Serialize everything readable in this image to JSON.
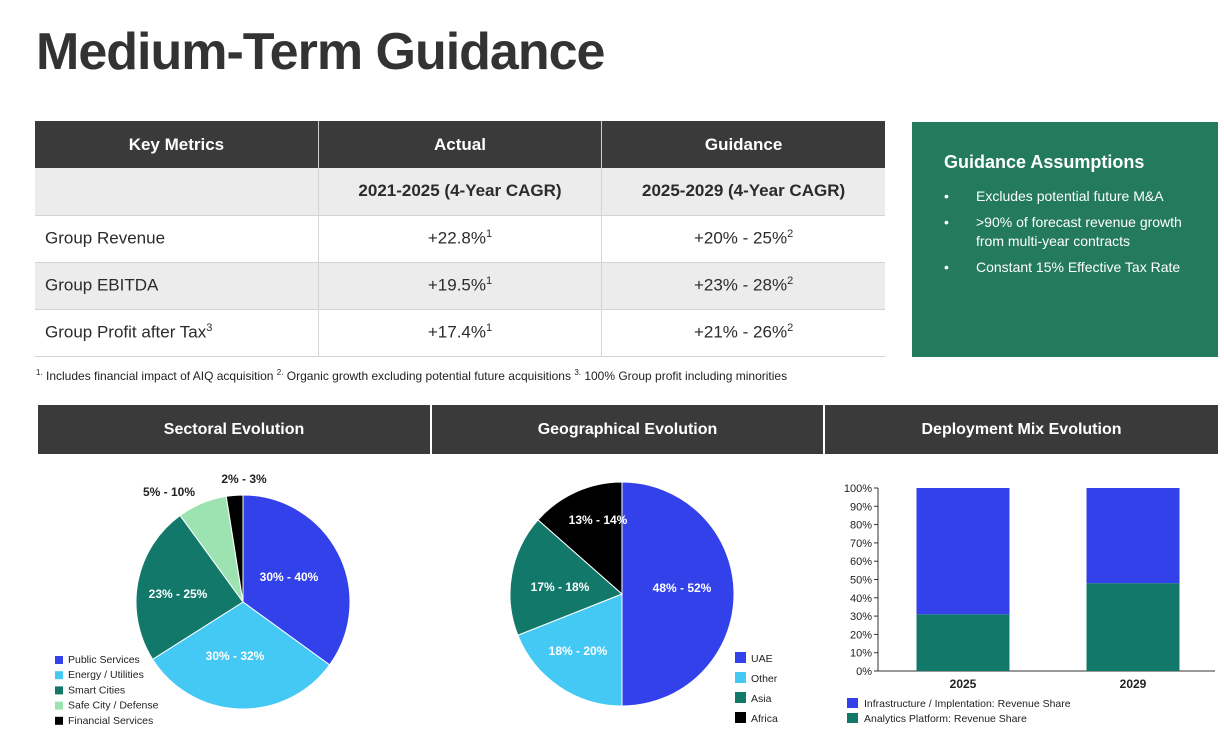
{
  "page": {
    "title": "Medium-Term Guidance"
  },
  "table": {
    "headers": [
      "Key Metrics",
      "Actual",
      "Guidance"
    ],
    "subheaders": [
      "",
      "2021-2025 (4-Year CAGR)",
      "2025-2029 (4-Year CAGR)"
    ],
    "rows": [
      {
        "metric": "Group Revenue",
        "metric_sup": "",
        "actual": "+22.8%",
        "actual_sup": "1",
        "guidance": "+20% - 25%",
        "guidance_sup": "2"
      },
      {
        "metric": "Group EBITDA",
        "metric_sup": "",
        "actual": "+19.5%",
        "actual_sup": "1",
        "guidance": "+23% - 28%",
        "guidance_sup": "2"
      },
      {
        "metric": "Group Profit after Tax",
        "metric_sup": "3",
        "actual": "+17.4%",
        "actual_sup": "1",
        "guidance": "+21% - 26%",
        "guidance_sup": "2"
      }
    ]
  },
  "assumptions": {
    "title": "Guidance Assumptions",
    "bullet": "•",
    "items": [
      "Excludes potential future M&A",
      ">90% of forecast revenue growth from multi-year contracts",
      "Constant 15% Effective Tax Rate"
    ]
  },
  "footnotes": [
    {
      "mark": "1.",
      "text": " Includes financial impact of AIQ acquisition "
    },
    {
      "mark": "2.",
      "text": " Organic growth excluding potential future acquisitions "
    },
    {
      "mark": "3.",
      "text": " 100% Group profit including minorities"
    }
  ],
  "chart_data": [
    {
      "type": "pie",
      "title": "Sectoral Evolution",
      "legend_position": "bottom-left",
      "slices": [
        {
          "name": "Public Services",
          "value": 35,
          "label": "30% - 40%",
          "color": "#3341ea"
        },
        {
          "name": "Energy / Utilities",
          "value": 31,
          "label": "30% - 32%",
          "color": "#44c9f5"
        },
        {
          "name": "Smart Cities",
          "value": 24,
          "label": "23% - 25%",
          "color": "#11786a"
        },
        {
          "name": "Safe City / Defense",
          "value": 7.5,
          "label": "5% - 10%",
          "color": "#9de3b2"
        },
        {
          "name": "Financial Services",
          "value": 2.5,
          "label": "2% - 3%",
          "color": "#000000"
        }
      ]
    },
    {
      "type": "pie",
      "title": "Geographical Evolution",
      "legend_position": "bottom-right",
      "slices": [
        {
          "name": "UAE",
          "value": 50,
          "label": "48% - 52%",
          "color": "#3341ea"
        },
        {
          "name": "Other",
          "value": 19,
          "label": "18% - 20%",
          "color": "#44c9f5"
        },
        {
          "name": "Asia",
          "value": 17.5,
          "label": "17% - 18%",
          "color": "#11786a"
        },
        {
          "name": "Africa",
          "value": 13.5,
          "label": "13% - 14%",
          "color": "#000000"
        }
      ]
    },
    {
      "type": "bar",
      "stacked": true,
      "title": "Deployment Mix Evolution",
      "categories": [
        "2025",
        "2029"
      ],
      "series": [
        {
          "name": "Analytics Platform: Revenue Share",
          "values": [
            31,
            48
          ],
          "color": "#11786a"
        },
        {
          "name": "Infrastructure / Implentation: Revenue Share",
          "values": [
            69,
            52
          ],
          "color": "#3341ea"
        }
      ],
      "legend_order": [
        "Infrastructure / Implentation: Revenue Share",
        "Analytics Platform: Revenue Share"
      ],
      "yticks": [
        "0%",
        "10%",
        "20%",
        "30%",
        "40%",
        "50%",
        "60%",
        "70%",
        "80%",
        "90%",
        "100%"
      ],
      "ylim": [
        0,
        100
      ],
      "legend_position": "bottom"
    }
  ]
}
